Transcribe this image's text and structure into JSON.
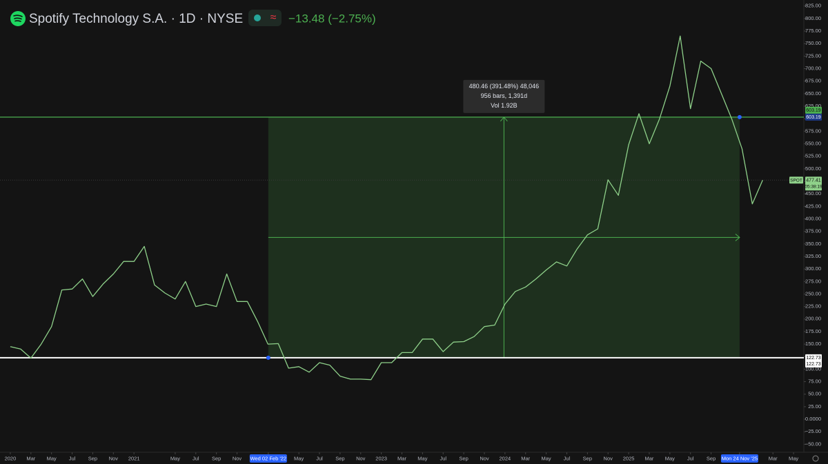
{
  "header": {
    "symbol_title": "Spotify Technology S.A. · 1D · NYSE",
    "change": "−13.48 (−2.75%)"
  },
  "chart_data": {
    "type": "line",
    "x": [
      "2020-01",
      "2020-02",
      "2020-03",
      "2020-04",
      "2020-05",
      "2020-06",
      "2020-07",
      "2020-08",
      "2020-09",
      "2020-10",
      "2020-11",
      "2020-12",
      "2021-01",
      "2021-02",
      "2021-03",
      "2021-04",
      "2021-05",
      "2021-06",
      "2021-07",
      "2021-08",
      "2021-09",
      "2021-10",
      "2021-11",
      "2021-12",
      "2022-01",
      "2022-02",
      "2022-03",
      "2022-04",
      "2022-05",
      "2022-06",
      "2022-07",
      "2022-08",
      "2022-09",
      "2022-10",
      "2022-11",
      "2022-12",
      "2023-01",
      "2023-02",
      "2023-03",
      "2023-04",
      "2023-05",
      "2023-06",
      "2023-07",
      "2023-08",
      "2023-09",
      "2023-10",
      "2023-11",
      "2023-12",
      "2024-01",
      "2024-02",
      "2024-03",
      "2024-04",
      "2024-05",
      "2024-06",
      "2024-07",
      "2024-08",
      "2024-09",
      "2024-10",
      "2024-11",
      "2024-12",
      "2025-01",
      "2025-02",
      "2025-03",
      "2025-04",
      "2025-05",
      "2025-06",
      "2025-07",
      "2025-08",
      "2025-09",
      "2025-10",
      "2025-11",
      "2025-12",
      "2026-01",
      "2026-02"
    ],
    "series": [
      {
        "name": "SPOT",
        "color": "#8fd18a",
        "values": [
          145,
          140,
          122,
          150,
          185,
          258,
          260,
          280,
          245,
          270,
          290,
          315,
          315,
          345,
          268,
          252,
          240,
          275,
          225,
          230,
          225,
          290,
          235,
          235,
          195,
          150,
          151,
          102,
          105,
          94,
          113,
          108,
          86,
          80,
          80,
          79,
          113,
          113,
          133,
          133,
          160,
          160,
          135,
          154,
          155,
          165,
          185,
          188,
          230,
          255,
          264,
          280,
          298,
          314,
          306,
          340,
          368,
          380,
          478,
          447,
          548,
          610,
          550,
          600,
          665,
          765,
          620,
          715,
          700,
          650,
          600,
          540,
          430,
          477.41
        ]
      }
    ],
    "xlim": [
      "2019-12",
      "2026-06"
    ],
    "ylim": [
      -66,
      837
    ],
    "yticks": [
      {
        "value": 825,
        "label": "825.00"
      },
      {
        "value": 800,
        "label": "800.00"
      },
      {
        "value": 775,
        "label": "775.00"
      },
      {
        "value": 750,
        "label": "750.00"
      },
      {
        "value": 725,
        "label": "725.00"
      },
      {
        "value": 700,
        "label": "700.00"
      },
      {
        "value": 675,
        "label": "675.00"
      },
      {
        "value": 650,
        "label": "650.00"
      },
      {
        "value": 625,
        "label": "625.00"
      },
      {
        "value": 600,
        "label": "600.00"
      },
      {
        "value": 575,
        "label": "575.00"
      },
      {
        "value": 550,
        "label": "550.00"
      },
      {
        "value": 525,
        "label": "525.00"
      },
      {
        "value": 500,
        "label": "500.00"
      },
      {
        "value": 475,
        "label": "475.00"
      },
      {
        "value": 450,
        "label": "450.00"
      },
      {
        "value": 425,
        "label": "425.00"
      },
      {
        "value": 400,
        "label": "400.00"
      },
      {
        "value": 375,
        "label": "375.00"
      },
      {
        "value": 350,
        "label": "350.00"
      },
      {
        "value": 325,
        "label": "325.00"
      },
      {
        "value": 300,
        "label": "300.00"
      },
      {
        "value": 275,
        "label": "275.00"
      },
      {
        "value": 250,
        "label": "250.00"
      },
      {
        "value": 225,
        "label": "225.00"
      },
      {
        "value": 200,
        "label": "200.00"
      },
      {
        "value": 175,
        "label": "175.00"
      },
      {
        "value": 150,
        "label": "150.00"
      },
      {
        "value": 125,
        "label": "125.00"
      },
      {
        "value": 100,
        "label": "100.00"
      },
      {
        "value": 75,
        "label": "75.00"
      },
      {
        "value": 50,
        "label": "50.00"
      },
      {
        "value": 25,
        "label": "25.00"
      },
      {
        "value": 0,
        "label": "0.0000"
      },
      {
        "value": -25,
        "label": "−25.00"
      },
      {
        "value": -50,
        "label": "−50.00"
      }
    ],
    "xticks": [
      {
        "value": "2020-01",
        "label": "2020"
      },
      {
        "value": "2020-03",
        "label": "Mar"
      },
      {
        "value": "2020-05",
        "label": "May"
      },
      {
        "value": "2020-07",
        "label": "Jul"
      },
      {
        "value": "2020-09",
        "label": "Sep"
      },
      {
        "value": "2020-11",
        "label": "Nov"
      },
      {
        "value": "2021-01",
        "label": "2021"
      },
      {
        "value": "2021-05",
        "label": "May"
      },
      {
        "value": "2021-07",
        "label": "Jul"
      },
      {
        "value": "2021-09",
        "label": "Sep"
      },
      {
        "value": "2021-11",
        "label": "Nov"
      },
      {
        "value": "2022-02-02",
        "label": "Wed 02 Feb '22"
      },
      {
        "value": "2022-05",
        "label": "May"
      },
      {
        "value": "2022-07",
        "label": "Jul"
      },
      {
        "value": "2022-09",
        "label": "Sep"
      },
      {
        "value": "2022-11",
        "label": "Nov"
      },
      {
        "value": "2023-01",
        "label": "2023"
      },
      {
        "value": "2023-03",
        "label": "Mar"
      },
      {
        "value": "2023-05",
        "label": "May"
      },
      {
        "value": "2023-07",
        "label": "Jul"
      },
      {
        "value": "2023-09",
        "label": "Sep"
      },
      {
        "value": "2023-11",
        "label": "Nov"
      },
      {
        "value": "2024-01",
        "label": "2024"
      },
      {
        "value": "2024-03",
        "label": "Mar"
      },
      {
        "value": "2024-05",
        "label": "May"
      },
      {
        "value": "2024-07",
        "label": "Jul"
      },
      {
        "value": "2024-09",
        "label": "Sep"
      },
      {
        "value": "2024-11",
        "label": "Nov"
      },
      {
        "value": "2025-01",
        "label": "2025"
      },
      {
        "value": "2025-03",
        "label": "Mar"
      },
      {
        "value": "2025-05",
        "label": "May"
      },
      {
        "value": "2025-07",
        "label": "Jul"
      },
      {
        "value": "2025-09",
        "label": "Sep"
      },
      {
        "value": "2025-11-24",
        "label": "Mon 24 Nov '25"
      },
      {
        "value": "2026-03",
        "label": "Mar"
      },
      {
        "value": "2026-05",
        "label": "May"
      }
    ],
    "measure": {
      "start": "2022-02-02",
      "end": "2025-11-24",
      "low": 122.73,
      "high": 603.19,
      "lines": [
        "480.46 (391.48%) 48,046",
        "956 bars, 1,391d",
        "Vol 1.92B"
      ]
    },
    "last": {
      "symbol": "SPOT",
      "value": 477.41,
      "countdown": "05:38:19"
    }
  }
}
